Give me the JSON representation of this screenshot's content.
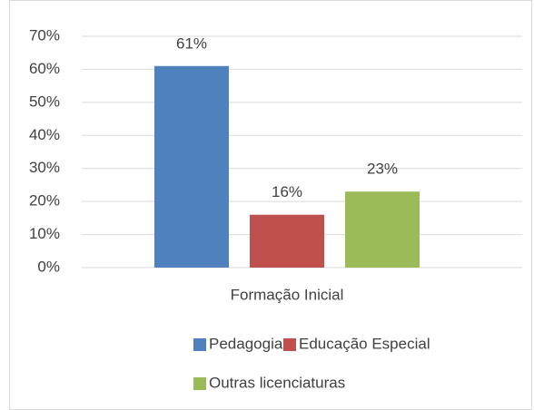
{
  "chart_data": {
    "type": "bar",
    "categories": [
      "Formação Inicial"
    ],
    "series": [
      {
        "name": "Pedagogia",
        "color": "#4f81bd",
        "values": [
          61
        ],
        "value_labels": [
          "61%"
        ]
      },
      {
        "name": "Educação Especial",
        "color": "#c0504d",
        "values": [
          16
        ],
        "value_labels": [
          "16%"
        ]
      },
      {
        "name": "Outras licenciaturas",
        "color": "#9bbb59",
        "values": [
          23
        ],
        "value_labels": [
          "23%"
        ]
      }
    ],
    "ylim": [
      0,
      70
    ],
    "yticks": [
      {
        "value": 0,
        "label": "0%"
      },
      {
        "value": 10,
        "label": "10%"
      },
      {
        "value": 20,
        "label": "20%"
      },
      {
        "value": 30,
        "label": "30%"
      },
      {
        "value": 40,
        "label": "40%"
      },
      {
        "value": 50,
        "label": "50%"
      },
      {
        "value": 60,
        "label": "60%"
      },
      {
        "value": 70,
        "label": "70%"
      }
    ],
    "grid": true,
    "legend": "bottom"
  }
}
